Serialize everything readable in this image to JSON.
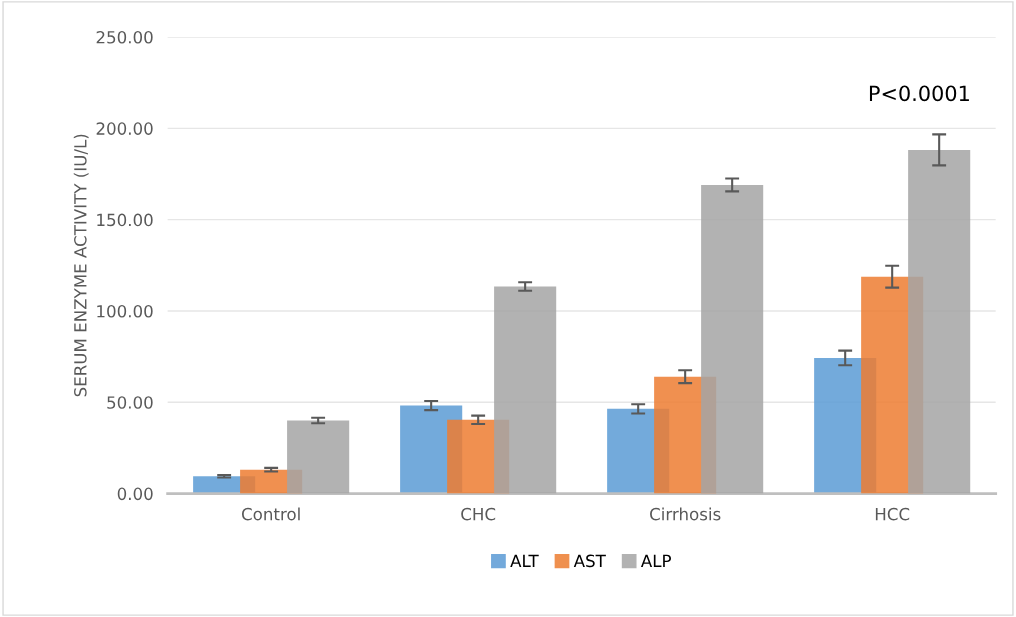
{
  "chart_data": {
    "type": "bar",
    "ylabel": "SERUM ENZYME ACTIVITY (IU/L)",
    "categories": [
      "Control",
      "CHC",
      "Cirrhosis",
      "HCC"
    ],
    "series": [
      {
        "name": "ALT",
        "color": "#5b9bd5",
        "values": [
          9.5,
          48.2,
          46.4,
          74.3
        ],
        "errors": [
          0.7,
          2.5,
          2.5,
          4
        ]
      },
      {
        "name": "AST",
        "color": "#ed7d31",
        "values": [
          13.1,
          40.4,
          64,
          118.8
        ],
        "errors": [
          1,
          2.3,
          3.5,
          6
        ]
      },
      {
        "name": "ALP",
        "color": "#a5a5a5",
        "values": [
          40,
          113.4,
          169,
          188.2
        ],
        "errors": [
          1.5,
          2.3,
          3.5,
          8.5
        ]
      }
    ],
    "ylim": [
      0,
      250
    ],
    "yticks": [
      {
        "value": 0,
        "label": "0.00"
      },
      {
        "value": 50,
        "label": "50.00"
      },
      {
        "value": 100,
        "label": "100.00"
      },
      {
        "value": 150,
        "label": "150.00"
      },
      {
        "value": 200,
        "label": "200.00"
      },
      {
        "value": 250,
        "label": "250.00"
      }
    ],
    "grid": "y",
    "legend": "bottom",
    "annotations": [
      "P<0.0001"
    ]
  }
}
